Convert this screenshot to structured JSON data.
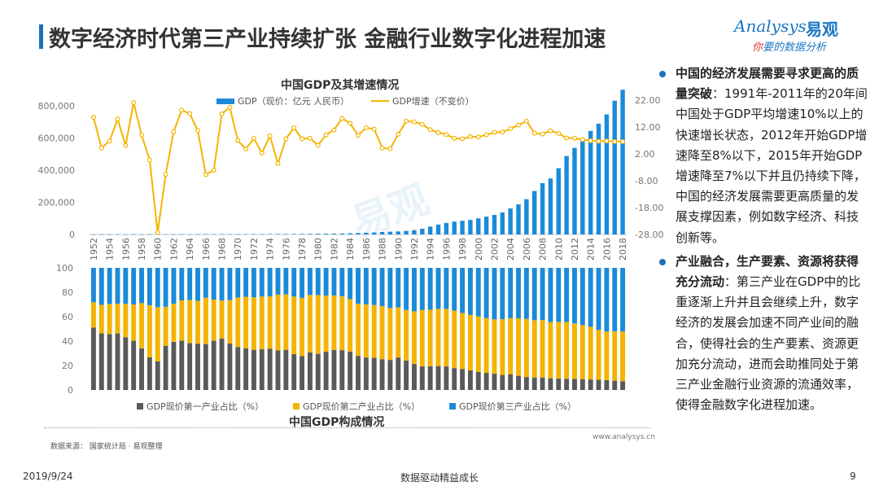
{
  "header": {
    "title": "数字经济时代第三产业持续扩张   金融行业数字化进程加速"
  },
  "logo": {
    "brand_en": "Analysys",
    "brand_cn": "易观",
    "slogan_prefix": "你",
    "slogan_rest": "要的数据分析",
    "color": "#1b76c3"
  },
  "watermark": "易观",
  "chart_data": [
    {
      "type": "bar+line",
      "title": "中国GDP及其增速情况",
      "legend": [
        "GDP（现价：亿元 人民币）",
        "GDP增速（不变价）"
      ],
      "colors": {
        "gdp": "#1b8ad8",
        "growth": "#f4b400"
      },
      "x": [
        1952,
        1953,
        1954,
        1955,
        1956,
        1957,
        1958,
        1959,
        1960,
        1961,
        1962,
        1963,
        1964,
        1965,
        1966,
        1967,
        1968,
        1969,
        1970,
        1971,
        1972,
        1973,
        1974,
        1975,
        1976,
        1977,
        1978,
        1979,
        1980,
        1981,
        1982,
        1983,
        1984,
        1985,
        1986,
        1987,
        1988,
        1989,
        1990,
        1991,
        1992,
        1993,
        1994,
        1995,
        1996,
        1997,
        1998,
        1999,
        2000,
        2001,
        2002,
        2003,
        2004,
        2005,
        2006,
        2007,
        2008,
        2009,
        2010,
        2011,
        2012,
        2013,
        2014,
        2015,
        2016,
        2017,
        2018
      ],
      "x_tick_labels": [
        "1952",
        "1954",
        "1956",
        "1958",
        "1960",
        "1962",
        "1964",
        "1966",
        "1968",
        "1970",
        "1972",
        "1974",
        "1976",
        "1978",
        "1980",
        "1982",
        "1984",
        "1986",
        "1988",
        "1990",
        "1992",
        "1994",
        "1996",
        "1998",
        "2000",
        "2002",
        "2004",
        "2006",
        "2008",
        "2010",
        "2012",
        "2014",
        "2016",
        "2018"
      ],
      "gdp": [
        679,
        824,
        859,
        911,
        1030,
        1071,
        1312,
        1448,
        1470,
        1232,
        1162,
        1248,
        1470,
        1734,
        1889,
        1794,
        1744,
        1962,
        2280,
        2457,
        2553,
        2758,
        2809,
        3014,
        2961,
        3222,
        3679,
        4101,
        4588,
        4936,
        5373,
        6021,
        7279,
        9099,
        10376,
        12175,
        15180,
        17180,
        18873,
        22006,
        27195,
        35673,
        48638,
        61340,
        71814,
        79715,
        85196,
        90564,
        100280,
        110863,
        121717,
        137422,
        161840,
        187319,
        219439,
        270092,
        319245,
        348518,
        412119,
        487940,
        538580,
        592963,
        643563,
        688858,
        746395,
        832036,
        900309
      ],
      "growth": [
        15.6,
        4.2,
        6.8,
        15.0,
        5.1,
        21.1,
        9.0,
        -0.3,
        -27.3,
        -5.6,
        10.3,
        18.3,
        17.0,
        10.7,
        -5.7,
        -4.1,
        16.9,
        19.3,
        7.0,
        3.8,
        7.8,
        2.3,
        8.7,
        -1.6,
        7.6,
        11.7,
        7.6,
        7.8,
        5.2,
        9.1,
        10.9,
        15.2,
        13.4,
        8.9,
        11.7,
        11.2,
        4.2,
        3.9,
        9.3,
        14.2,
        13.9,
        13.0,
        11.0,
        9.9,
        9.2,
        7.8,
        7.6,
        8.4,
        8.3,
        9.1,
        10.0,
        10.1,
        11.4,
        12.7,
        14.2,
        9.7,
        9.4,
        10.6,
        9.6,
        7.9,
        7.8,
        7.3,
        6.9,
        6.7,
        6.8,
        6.6,
        6.6
      ],
      "y_left_ticks": [
        "800,000",
        "600,000",
        "400,000",
        "200,000",
        "0"
      ],
      "y_left_range": [
        0,
        800000
      ],
      "y_right_ticks": [
        "22.00",
        "12.00",
        "2.00",
        "-8.00",
        "-18.00",
        "-28.00"
      ],
      "y_right_range": [
        -28,
        22
      ]
    },
    {
      "type": "stacked-bar",
      "title": "中国GDP构成情况",
      "legend": [
        "GDP现价第一产业占比（%）",
        "GDP现价第二产业占比（%）",
        "GDP现价第三产业占比（%）"
      ],
      "colors": {
        "primary": "#5a5a5a",
        "secondary": "#f4b400",
        "tertiary": "#1b8ad8"
      },
      "y_ticks": [
        "100",
        "80",
        "60",
        "40",
        "20",
        "0"
      ],
      "y_range": [
        0,
        100
      ],
      "primary": [
        51.0,
        46.3,
        45.8,
        46.3,
        43.2,
        40.3,
        34.1,
        26.7,
        23.4,
        36.2,
        39.4,
        40.3,
        38.4,
        37.9,
        37.6,
        40.3,
        42.2,
        38.0,
        35.2,
        34.1,
        32.9,
        33.4,
        33.9,
        32.4,
        32.9,
        29.4,
        27.7,
        30.7,
        29.6,
        31.3,
        32.8,
        32.6,
        31.5,
        27.9,
        26.6,
        26.3,
        25.2,
        24.6,
        26.6,
        24.0,
        21.3,
        19.3,
        19.5,
        19.6,
        19.3,
        17.9,
        17.2,
        16.1,
        14.7,
        14.0,
        13.3,
        12.3,
        12.9,
        11.6,
        10.6,
        10.2,
        10.2,
        9.6,
        9.3,
        9.2,
        9.1,
        8.9,
        8.6,
        8.4,
        8.1,
        7.6,
        7.2
      ],
      "secondary": [
        20.8,
        23.4,
        24.6,
        24.4,
        27.3,
        29.7,
        37.0,
        42.7,
        44.4,
        31.9,
        31.2,
        33.0,
        35.3,
        35.1,
        38.0,
        33.7,
        31.1,
        35.6,
        40.5,
        42.2,
        43.0,
        43.1,
        42.7,
        45.7,
        45.4,
        47.1,
        47.7,
        47.1,
        48.1,
        46.0,
        44.6,
        44.2,
        42.9,
        42.7,
        43.5,
        43.3,
        43.5,
        42.5,
        41.0,
        41.5,
        43.1,
        46.2,
        46.2,
        46.8,
        47.1,
        47.1,
        45.8,
        45.4,
        45.5,
        44.8,
        44.5,
        45.6,
        45.9,
        47.0,
        47.6,
        46.9,
        47.0,
        46.0,
        46.5,
        46.5,
        45.4,
        44.2,
        43.1,
        40.8,
        39.8,
        40.5,
        40.7
      ],
      "tertiary": [
        28.2,
        30.3,
        29.6,
        29.3,
        29.5,
        30.0,
        28.9,
        30.6,
        32.2,
        31.9,
        29.4,
        26.7,
        26.3,
        27.0,
        24.4,
        26.0,
        26.7,
        26.4,
        24.3,
        23.7,
        24.1,
        23.5,
        23.4,
        21.9,
        21.7,
        23.5,
        24.6,
        22.2,
        22.3,
        22.7,
        22.6,
        23.2,
        25.6,
        29.4,
        29.9,
        30.4,
        31.3,
        32.9,
        32.4,
        34.5,
        35.6,
        34.5,
        34.3,
        33.6,
        33.6,
        35.0,
        37.0,
        38.5,
        39.8,
        41.2,
        42.2,
        42.1,
        41.2,
        41.4,
        41.8,
        42.9,
        42.8,
        44.4,
        44.2,
        44.3,
        45.5,
        46.9,
        48.3,
        50.8,
        52.1,
        51.9,
        52.1
      ]
    }
  ],
  "right_panel": {
    "bullets": [
      {
        "bold": "中国的经济发展需要寻求更高的质量突破",
        "text": "：1991年-2011年的20年间中国处于GDP平均增速10%以上的快速增长状态，2012年开始GDP增速降至8%以下，2015年开始GDP增速降至7%以下并且仍持续下降，中国的经济发展需要更高质量的发展支撑因素，例如数字经济、科技创新等。"
      },
      {
        "bold": "产业融合，生产要素、资源将获得充分流动",
        "text": "：第三产业在GDP中的比重逐渐上升并且会继续上升，数字经济的发展会加速不同产业间的融合，使得社会的生产要素、资源更加充分流动，进而会助推同处于第三产业金融行业资源的流通效率，使得金融数字化进程加速。"
      }
    ],
    "accent": "#1e6fb8"
  },
  "source": "数据来源： 国家统计局 · 易观整理",
  "website": "www.analysys.cn",
  "footer": {
    "date": "2019/9/24",
    "center": "数据驱动精益成长",
    "page": "9"
  }
}
